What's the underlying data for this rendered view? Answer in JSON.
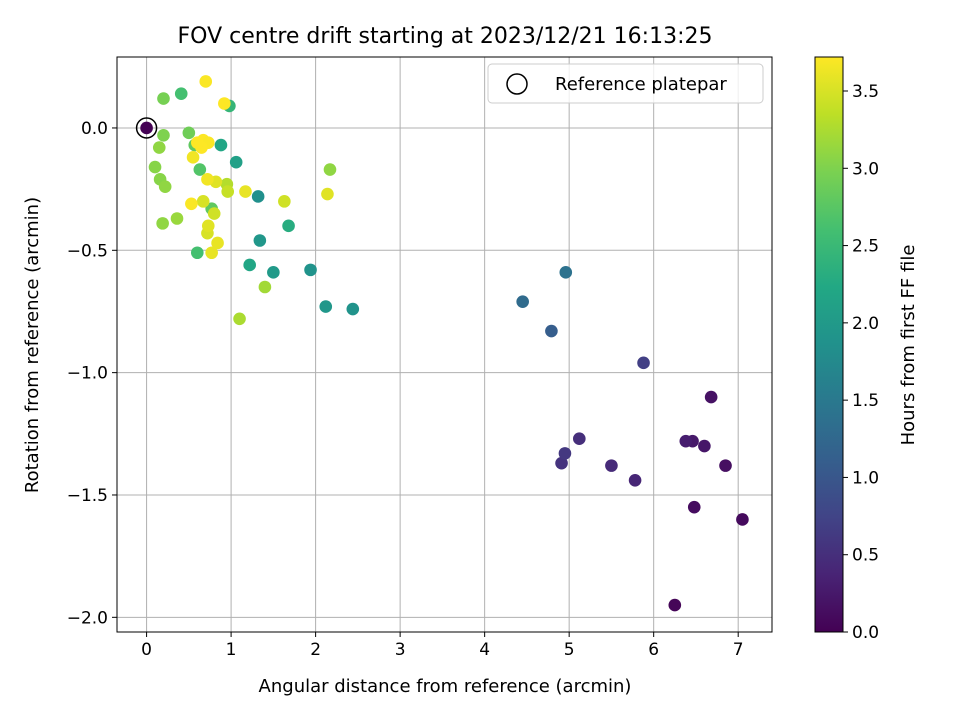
{
  "chart_data": {
    "type": "scatter",
    "title": "FOV centre drift starting at 2023/12/21 16:13:25",
    "xlabel": "Angular distance from reference (arcmin)",
    "ylabel": "Rotation from reference (arcmin)",
    "xlim": [
      -0.35,
      7.4
    ],
    "ylim": [
      -2.06,
      0.29
    ],
    "xticks": [
      0,
      1,
      2,
      3,
      4,
      5,
      6,
      7
    ],
    "xtick_labels": [
      "0",
      "1",
      "2",
      "3",
      "4",
      "5",
      "6",
      "7"
    ],
    "yticks": [
      0.0,
      -0.5,
      -1.0,
      -1.5,
      -2.0
    ],
    "ytick_labels": [
      "0.0",
      "−0.5",
      "−1.0",
      "−1.5",
      "−2.0"
    ],
    "grid": true,
    "legend": {
      "placement": "top-right",
      "entries": [
        "Reference platepar"
      ]
    },
    "reference_point": {
      "x": 0,
      "y": 0
    },
    "colorbar": {
      "label": "Hours from first FF file",
      "range": [
        0,
        3.72
      ],
      "ticks": [
        0.0,
        0.5,
        1.0,
        1.5,
        2.0,
        2.5,
        3.0,
        3.5
      ],
      "tick_labels": [
        "0.0",
        "0.5",
        "1.0",
        "1.5",
        "2.0",
        "2.5",
        "3.0",
        "3.5"
      ],
      "colormap": "viridis"
    },
    "points": [
      {
        "x": 0.0,
        "y": 0.0,
        "t": 0.0
      },
      {
        "x": 6.25,
        "y": -1.95,
        "t": 0.05
      },
      {
        "x": 7.05,
        "y": -1.6,
        "t": 0.1
      },
      {
        "x": 6.48,
        "y": -1.55,
        "t": 0.12
      },
      {
        "x": 6.85,
        "y": -1.38,
        "t": 0.15
      },
      {
        "x": 6.68,
        "y": -1.1,
        "t": 0.18
      },
      {
        "x": 6.6,
        "y": -1.3,
        "t": 0.22
      },
      {
        "x": 6.46,
        "y": -1.28,
        "t": 0.25
      },
      {
        "x": 6.38,
        "y": -1.28,
        "t": 0.3
      },
      {
        "x": 5.78,
        "y": -1.44,
        "t": 0.4
      },
      {
        "x": 5.5,
        "y": -1.38,
        "t": 0.45
      },
      {
        "x": 5.12,
        "y": -1.27,
        "t": 0.5
      },
      {
        "x": 4.91,
        "y": -1.37,
        "t": 0.55
      },
      {
        "x": 4.95,
        "y": -1.33,
        "t": 0.6
      },
      {
        "x": 5.88,
        "y": -0.96,
        "t": 0.7
      },
      {
        "x": 4.79,
        "y": -0.83,
        "t": 1.1
      },
      {
        "x": 4.45,
        "y": -0.71,
        "t": 1.3
      },
      {
        "x": 4.96,
        "y": -0.59,
        "t": 1.4
      },
      {
        "x": 1.32,
        "y": -0.28,
        "t": 1.85
      },
      {
        "x": 2.44,
        "y": -0.74,
        "t": 1.9
      },
      {
        "x": 2.12,
        "y": -0.73,
        "t": 1.95
      },
      {
        "x": 1.94,
        "y": -0.58,
        "t": 1.9
      },
      {
        "x": 1.5,
        "y": -0.59,
        "t": 2.0
      },
      {
        "x": 1.34,
        "y": -0.46,
        "t": 1.95
      },
      {
        "x": 1.06,
        "y": -0.14,
        "t": 2.1
      },
      {
        "x": 1.22,
        "y": -0.56,
        "t": 2.2
      },
      {
        "x": 0.88,
        "y": -0.07,
        "t": 2.2
      },
      {
        "x": 1.68,
        "y": -0.4,
        "t": 2.3
      },
      {
        "x": 0.98,
        "y": 0.09,
        "t": 2.45
      },
      {
        "x": 0.41,
        "y": 0.14,
        "t": 2.6
      },
      {
        "x": 0.6,
        "y": -0.51,
        "t": 2.6
      },
      {
        "x": 0.63,
        "y": -0.17,
        "t": 2.7
      },
      {
        "x": 0.77,
        "y": -0.33,
        "t": 2.8
      },
      {
        "x": 0.57,
        "y": -0.07,
        "t": 2.8
      },
      {
        "x": 0.5,
        "y": -0.02,
        "t": 2.9
      },
      {
        "x": 0.2,
        "y": 0.12,
        "t": 2.95
      },
      {
        "x": 0.2,
        "y": -0.03,
        "t": 3.0
      },
      {
        "x": 0.1,
        "y": -0.16,
        "t": 3.05
      },
      {
        "x": 0.16,
        "y": -0.21,
        "t": 3.05
      },
      {
        "x": 0.22,
        "y": -0.24,
        "t": 3.1
      },
      {
        "x": 0.15,
        "y": -0.08,
        "t": 3.1
      },
      {
        "x": 0.19,
        "y": -0.39,
        "t": 3.1
      },
      {
        "x": 0.36,
        "y": -0.37,
        "t": 3.15
      },
      {
        "x": 2.17,
        "y": -0.17,
        "t": 3.1
      },
      {
        "x": 1.4,
        "y": -0.65,
        "t": 3.2
      },
      {
        "x": 1.1,
        "y": -0.78,
        "t": 3.25
      },
      {
        "x": 0.95,
        "y": -0.23,
        "t": 3.3
      },
      {
        "x": 0.96,
        "y": -0.26,
        "t": 3.4
      },
      {
        "x": 0.8,
        "y": -0.35,
        "t": 3.45
      },
      {
        "x": 0.67,
        "y": -0.3,
        "t": 3.5
      },
      {
        "x": 0.72,
        "y": -0.43,
        "t": 3.5
      },
      {
        "x": 0.73,
        "y": -0.4,
        "t": 3.55
      },
      {
        "x": 0.82,
        "y": -0.22,
        "t": 3.55
      },
      {
        "x": 0.84,
        "y": -0.47,
        "t": 3.6
      },
      {
        "x": 0.77,
        "y": -0.51,
        "t": 3.6
      },
      {
        "x": 0.72,
        "y": -0.21,
        "t": 3.65
      },
      {
        "x": 0.55,
        "y": -0.12,
        "t": 3.65
      },
      {
        "x": 0.53,
        "y": -0.31,
        "t": 3.7
      },
      {
        "x": 1.63,
        "y": -0.3,
        "t": 3.45
      },
      {
        "x": 2.14,
        "y": -0.27,
        "t": 3.55
      },
      {
        "x": 1.17,
        "y": -0.26,
        "t": 3.6
      },
      {
        "x": 0.7,
        "y": 0.19,
        "t": 3.7
      },
      {
        "x": 0.92,
        "y": 0.1,
        "t": 3.72
      },
      {
        "x": 0.67,
        "y": -0.05,
        "t": 3.72
      },
      {
        "x": 0.73,
        "y": -0.06,
        "t": 3.7
      },
      {
        "x": 0.65,
        "y": -0.08,
        "t": 3.72
      },
      {
        "x": 0.6,
        "y": -0.06,
        "t": 3.72
      }
    ]
  }
}
